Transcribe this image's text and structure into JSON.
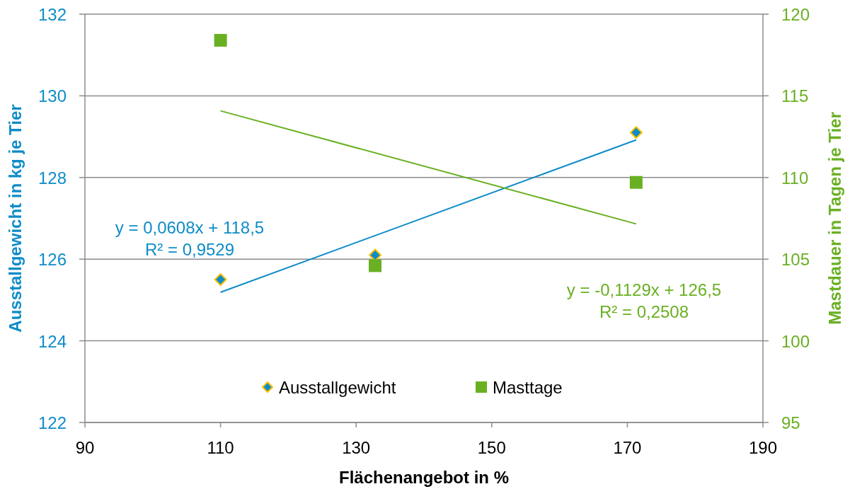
{
  "chart_data": {
    "type": "scatter",
    "xlabel": "Flächenangebot in %",
    "ylabel": "Ausstallgewicht in kg je Tier",
    "y2label": "Mastdauer in Tagen je Tier",
    "xlim": [
      90,
      190
    ],
    "xticks": [
      90,
      110,
      130,
      150,
      170,
      190
    ],
    "ylim": [
      122,
      132
    ],
    "yticks": [
      122,
      124,
      126,
      128,
      130,
      132
    ],
    "y2lim": [
      95,
      120
    ],
    "y2ticks": [
      95,
      100,
      105,
      110,
      115,
      120
    ],
    "grid": "y",
    "legend": "bottom",
    "series": [
      {
        "name": "Ausstallgewicht",
        "marker": "diamond",
        "color": "#0e8cc8",
        "x": [
          110,
          132.8,
          171.3
        ],
        "values": [
          125.5,
          126.1,
          129.1
        ]
      },
      {
        "name": "Masttage",
        "marker": "square",
        "axis": "y2",
        "color": "#6ab023",
        "x": [
          110,
          132.8,
          171.3
        ],
        "values": [
          118.4,
          104.6,
          109.7
        ]
      },
      {
        "type": "line",
        "marker": "none",
        "color": "#0e8cc8",
        "x": [
          110,
          171.3
        ],
        "values": [
          125.19,
          128.92
        ]
      },
      {
        "type": "line",
        "marker": "none",
        "axis": "y2",
        "color": "#6ab023",
        "x": [
          110,
          171.3
        ],
        "values": [
          114.08,
          107.16
        ]
      }
    ],
    "annotations": [
      "y = 0,0608x + 118,5\nR² = 0,9529",
      "y = -0,1129x + 126,5\nR² = 0,2508"
    ]
  }
}
